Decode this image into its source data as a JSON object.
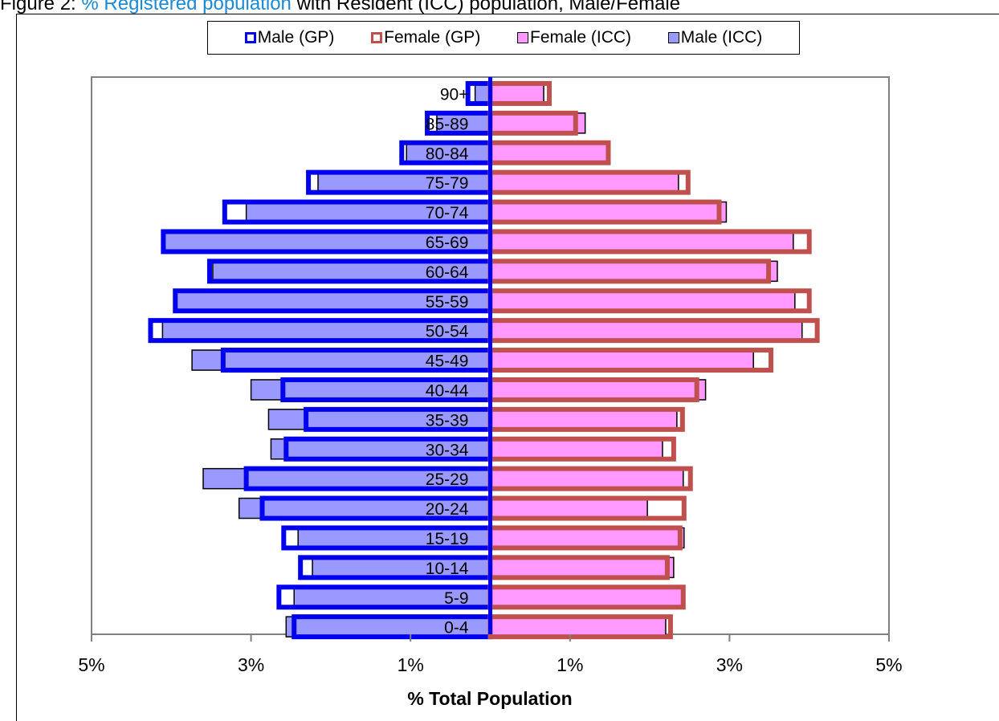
{
  "title": {
    "prefix": "Figure 2: ",
    "link": "% Registered population",
    "suffix": " with Resident (ICC) population, Male/Female"
  },
  "colors": {
    "male_gp_border": "#0000ee",
    "female_gp_border": "#c0504d",
    "male_icc_fill": "#9999ff",
    "female_icc_fill": "#ff99ff",
    "link": "#1a8ad4",
    "plot_border": "#808080"
  },
  "legend": [
    {
      "label": "Male (GP)",
      "swatch": "male-gp"
    },
    {
      "label": "Female (GP)",
      "swatch": "female-gp"
    },
    {
      "label": "Female (ICC)",
      "swatch": "female-icc"
    },
    {
      "label": "Male (ICC)",
      "swatch": "male-icc"
    }
  ],
  "chart_data": {
    "type": "bar",
    "orientation": "horizontal",
    "subtype": "population-pyramid",
    "title": "% Registered population with Resident (ICC) population, Male/Female",
    "xlabel": "% Total Population",
    "ylabel": "",
    "xlim": [
      -5,
      5
    ],
    "x_tick_values": [
      -5,
      -3,
      -1,
      1,
      3,
      5
    ],
    "x_tick_labels": [
      "5%",
      "3%",
      "1%",
      "1%",
      "3%",
      "5%"
    ],
    "legend_position": "top",
    "grid": false,
    "categories": [
      "90+",
      "85-89",
      "80-84",
      "75-79",
      "70-74",
      "65-69",
      "60-64",
      "55-59",
      "50-54",
      "45-49",
      "40-44",
      "35-39",
      "30-34",
      "25-29",
      "20-24",
      "15-19",
      "10-14",
      "5-9",
      "0-4"
    ],
    "series": [
      {
        "name": "Male (GP)",
        "side": "left",
        "style": "outline",
        "values": [
          0.28,
          0.79,
          1.11,
          2.28,
          3.33,
          4.1,
          3.52,
          3.95,
          4.26,
          3.35,
          2.6,
          2.31,
          2.56,
          3.06,
          2.86,
          2.59,
          2.38,
          2.65,
          2.46
        ]
      },
      {
        "name": "Female (GP)",
        "side": "right",
        "style": "outline",
        "values": [
          0.74,
          1.07,
          1.48,
          2.48,
          2.87,
          4.0,
          3.49,
          4.0,
          4.1,
          3.52,
          2.59,
          2.41,
          2.3,
          2.51,
          2.43,
          2.38,
          2.22,
          2.42,
          2.26
        ]
      },
      {
        "name": "Female (ICC)",
        "side": "right",
        "style": "filled",
        "values": [
          0.67,
          1.19,
          1.5,
          2.36,
          2.96,
          3.8,
          3.6,
          3.82,
          3.91,
          3.3,
          2.7,
          2.34,
          2.16,
          2.42,
          1.97,
          2.43,
          2.3,
          2.4,
          2.2
        ]
      },
      {
        "name": "Male (ICC)",
        "side": "left",
        "style": "filled",
        "values": [
          0.19,
          0.67,
          1.05,
          2.16,
          3.06,
          4.09,
          3.48,
          3.94,
          4.11,
          3.74,
          3.0,
          2.78,
          2.75,
          3.6,
          3.15,
          2.41,
          2.23,
          2.46,
          2.56
        ]
      }
    ]
  },
  "xaxis_label": "% Total Population"
}
